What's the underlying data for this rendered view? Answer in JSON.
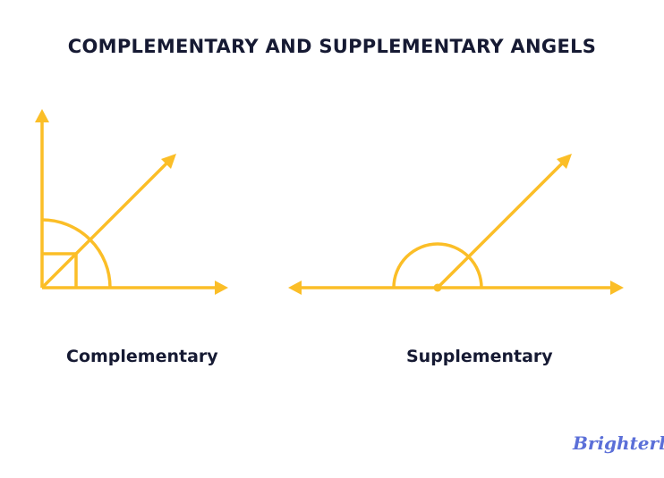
{
  "title": "COMPLEMENTARY AND SUPPLEMENTARY ANGELS",
  "diagrams": [
    {
      "label": "Complementary",
      "angle_type": "complementary"
    },
    {
      "label": "Supplementary",
      "angle_type": "supplementary"
    }
  ],
  "logo": "Brighterly",
  "colors": {
    "stroke": "#FBBE27",
    "text": "#161A33",
    "logo": "#5B6FD8"
  }
}
